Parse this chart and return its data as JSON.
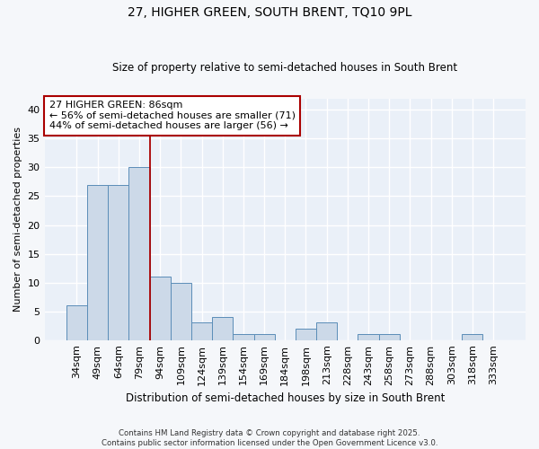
{
  "title": "27, HIGHER GREEN, SOUTH BRENT, TQ10 9PL",
  "subtitle": "Size of property relative to semi-detached houses in South Brent",
  "xlabel": "Distribution of semi-detached houses by size in South Brent",
  "ylabel": "Number of semi-detached properties",
  "categories": [
    "34sqm",
    "49sqm",
    "64sqm",
    "79sqm",
    "94sqm",
    "109sqm",
    "124sqm",
    "139sqm",
    "154sqm",
    "169sqm",
    "184sqm",
    "198sqm",
    "213sqm",
    "228sqm",
    "243sqm",
    "258sqm",
    "273sqm",
    "288sqm",
    "303sqm",
    "318sqm",
    "333sqm"
  ],
  "values": [
    6,
    27,
    27,
    30,
    11,
    10,
    3,
    4,
    1,
    1,
    0,
    2,
    3,
    0,
    1,
    1,
    0,
    0,
    0,
    1,
    0
  ],
  "bar_color": "#ccd9e8",
  "bar_edge_color": "#5b8db8",
  "vline_x": 3.5,
  "vline_color": "#aa0000",
  "annotation_text": "27 HIGHER GREEN: 86sqm\n← 56% of semi-detached houses are smaller (71)\n44% of semi-detached houses are larger (56) →",
  "annotation_box_edgecolor": "#aa0000",
  "ylim": [
    0,
    42
  ],
  "yticks": [
    0,
    5,
    10,
    15,
    20,
    25,
    30,
    35,
    40
  ],
  "bg_color": "#f5f7fa",
  "plot_bg_color": "#eaf0f8",
  "grid_color": "#ffffff",
  "footnote": "Contains HM Land Registry data © Crown copyright and database right 2025.\nContains public sector information licensed under the Open Government Licence v3.0."
}
